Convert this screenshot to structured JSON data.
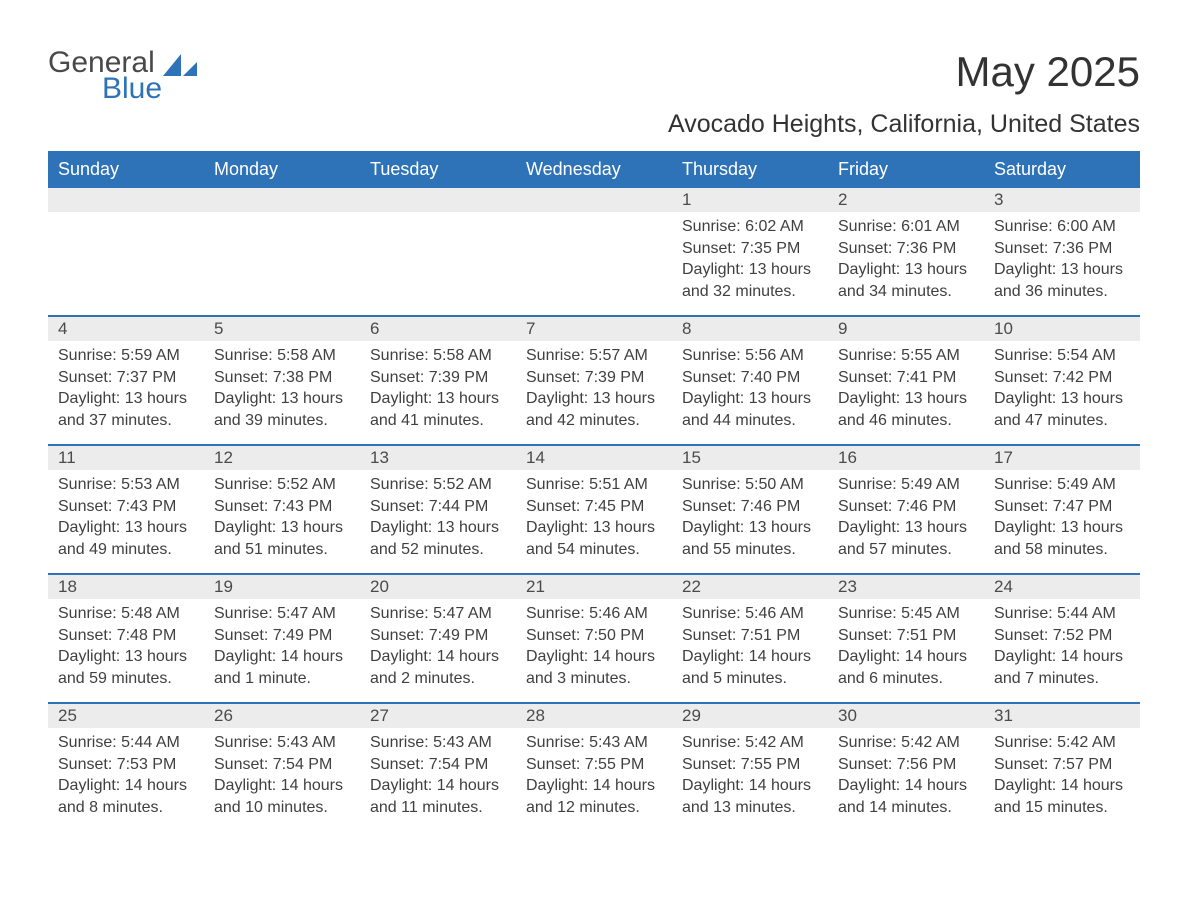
{
  "logo": {
    "word1": "General",
    "word2": "Blue",
    "color_gray": "#494949",
    "color_blue": "#2e73b8"
  },
  "title": "May 2025",
  "location": "Avocado Heights, California, United States",
  "header_bg": "#2e73b8",
  "header_fg": "#ffffff",
  "daynum_bg": "#ececec",
  "row_border": "#2e73b8",
  "background": "#ffffff",
  "text_color": "#404040",
  "day_names": [
    "Sunday",
    "Monday",
    "Tuesday",
    "Wednesday",
    "Thursday",
    "Friday",
    "Saturday"
  ],
  "weeks": [
    [
      null,
      null,
      null,
      null,
      {
        "n": "1",
        "sunrise": "Sunrise: 6:02 AM",
        "sunset": "Sunset: 7:35 PM",
        "daylight": "Daylight: 13 hours and 32 minutes."
      },
      {
        "n": "2",
        "sunrise": "Sunrise: 6:01 AM",
        "sunset": "Sunset: 7:36 PM",
        "daylight": "Daylight: 13 hours and 34 minutes."
      },
      {
        "n": "3",
        "sunrise": "Sunrise: 6:00 AM",
        "sunset": "Sunset: 7:36 PM",
        "daylight": "Daylight: 13 hours and 36 minutes."
      }
    ],
    [
      {
        "n": "4",
        "sunrise": "Sunrise: 5:59 AM",
        "sunset": "Sunset: 7:37 PM",
        "daylight": "Daylight: 13 hours and 37 minutes."
      },
      {
        "n": "5",
        "sunrise": "Sunrise: 5:58 AM",
        "sunset": "Sunset: 7:38 PM",
        "daylight": "Daylight: 13 hours and 39 minutes."
      },
      {
        "n": "6",
        "sunrise": "Sunrise: 5:58 AM",
        "sunset": "Sunset: 7:39 PM",
        "daylight": "Daylight: 13 hours and 41 minutes."
      },
      {
        "n": "7",
        "sunrise": "Sunrise: 5:57 AM",
        "sunset": "Sunset: 7:39 PM",
        "daylight": "Daylight: 13 hours and 42 minutes."
      },
      {
        "n": "8",
        "sunrise": "Sunrise: 5:56 AM",
        "sunset": "Sunset: 7:40 PM",
        "daylight": "Daylight: 13 hours and 44 minutes."
      },
      {
        "n": "9",
        "sunrise": "Sunrise: 5:55 AM",
        "sunset": "Sunset: 7:41 PM",
        "daylight": "Daylight: 13 hours and 46 minutes."
      },
      {
        "n": "10",
        "sunrise": "Sunrise: 5:54 AM",
        "sunset": "Sunset: 7:42 PM",
        "daylight": "Daylight: 13 hours and 47 minutes."
      }
    ],
    [
      {
        "n": "11",
        "sunrise": "Sunrise: 5:53 AM",
        "sunset": "Sunset: 7:43 PM",
        "daylight": "Daylight: 13 hours and 49 minutes."
      },
      {
        "n": "12",
        "sunrise": "Sunrise: 5:52 AM",
        "sunset": "Sunset: 7:43 PM",
        "daylight": "Daylight: 13 hours and 51 minutes."
      },
      {
        "n": "13",
        "sunrise": "Sunrise: 5:52 AM",
        "sunset": "Sunset: 7:44 PM",
        "daylight": "Daylight: 13 hours and 52 minutes."
      },
      {
        "n": "14",
        "sunrise": "Sunrise: 5:51 AM",
        "sunset": "Sunset: 7:45 PM",
        "daylight": "Daylight: 13 hours and 54 minutes."
      },
      {
        "n": "15",
        "sunrise": "Sunrise: 5:50 AM",
        "sunset": "Sunset: 7:46 PM",
        "daylight": "Daylight: 13 hours and 55 minutes."
      },
      {
        "n": "16",
        "sunrise": "Sunrise: 5:49 AM",
        "sunset": "Sunset: 7:46 PM",
        "daylight": "Daylight: 13 hours and 57 minutes."
      },
      {
        "n": "17",
        "sunrise": "Sunrise: 5:49 AM",
        "sunset": "Sunset: 7:47 PM",
        "daylight": "Daylight: 13 hours and 58 minutes."
      }
    ],
    [
      {
        "n": "18",
        "sunrise": "Sunrise: 5:48 AM",
        "sunset": "Sunset: 7:48 PM",
        "daylight": "Daylight: 13 hours and 59 minutes."
      },
      {
        "n": "19",
        "sunrise": "Sunrise: 5:47 AM",
        "sunset": "Sunset: 7:49 PM",
        "daylight": "Daylight: 14 hours and 1 minute."
      },
      {
        "n": "20",
        "sunrise": "Sunrise: 5:47 AM",
        "sunset": "Sunset: 7:49 PM",
        "daylight": "Daylight: 14 hours and 2 minutes."
      },
      {
        "n": "21",
        "sunrise": "Sunrise: 5:46 AM",
        "sunset": "Sunset: 7:50 PM",
        "daylight": "Daylight: 14 hours and 3 minutes."
      },
      {
        "n": "22",
        "sunrise": "Sunrise: 5:46 AM",
        "sunset": "Sunset: 7:51 PM",
        "daylight": "Daylight: 14 hours and 5 minutes."
      },
      {
        "n": "23",
        "sunrise": "Sunrise: 5:45 AM",
        "sunset": "Sunset: 7:51 PM",
        "daylight": "Daylight: 14 hours and 6 minutes."
      },
      {
        "n": "24",
        "sunrise": "Sunrise: 5:44 AM",
        "sunset": "Sunset: 7:52 PM",
        "daylight": "Daylight: 14 hours and 7 minutes."
      }
    ],
    [
      {
        "n": "25",
        "sunrise": "Sunrise: 5:44 AM",
        "sunset": "Sunset: 7:53 PM",
        "daylight": "Daylight: 14 hours and 8 minutes."
      },
      {
        "n": "26",
        "sunrise": "Sunrise: 5:43 AM",
        "sunset": "Sunset: 7:54 PM",
        "daylight": "Daylight: 14 hours and 10 minutes."
      },
      {
        "n": "27",
        "sunrise": "Sunrise: 5:43 AM",
        "sunset": "Sunset: 7:54 PM",
        "daylight": "Daylight: 14 hours and 11 minutes."
      },
      {
        "n": "28",
        "sunrise": "Sunrise: 5:43 AM",
        "sunset": "Sunset: 7:55 PM",
        "daylight": "Daylight: 14 hours and 12 minutes."
      },
      {
        "n": "29",
        "sunrise": "Sunrise: 5:42 AM",
        "sunset": "Sunset: 7:55 PM",
        "daylight": "Daylight: 14 hours and 13 minutes."
      },
      {
        "n": "30",
        "sunrise": "Sunrise: 5:42 AM",
        "sunset": "Sunset: 7:56 PM",
        "daylight": "Daylight: 14 hours and 14 minutes."
      },
      {
        "n": "31",
        "sunrise": "Sunrise: 5:42 AM",
        "sunset": "Sunset: 7:57 PM",
        "daylight": "Daylight: 14 hours and 15 minutes."
      }
    ]
  ]
}
